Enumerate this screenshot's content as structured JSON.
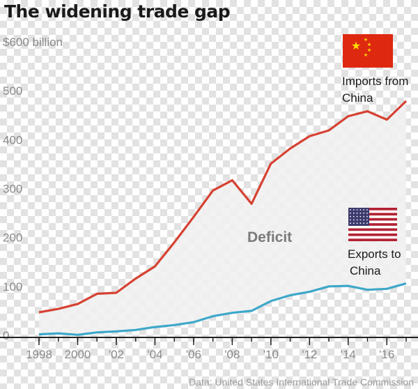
{
  "title": "The widening trade gap",
  "source": "Data: United States International Trade Commission",
  "colors": {
    "imports": "#d64232",
    "exports": "#3ea8c9",
    "area": "#f1f1f1",
    "axis": "#222222"
  },
  "icons": {
    "imports_flag": "china-flag-icon",
    "exports_flag": "us-flag-icon"
  },
  "chart_data": {
    "type": "line",
    "title": "The widening trade gap",
    "xlabel": "",
    "ylabel": "",
    "y_unit": "$600 billion",
    "ylim": [
      0,
      600
    ],
    "xlim": [
      1998,
      2017
    ],
    "y_ticks": [
      "0",
      "100",
      "200",
      "300",
      "400",
      "500",
      "$600 billion"
    ],
    "y_tick_values": [
      0,
      100,
      200,
      300,
      400,
      500,
      600
    ],
    "x_tick_values": [
      1998,
      2000,
      2002,
      2004,
      2006,
      2008,
      2010,
      2012,
      2014,
      2016
    ],
    "x_tick_labels": [
      "1998",
      "2000",
      "'02",
      "'04",
      "'06",
      "'08",
      "'10",
      "'12",
      "'14",
      "'16"
    ],
    "grid": false,
    "annotation": "Deficit",
    "series": [
      {
        "name": "Imports from China",
        "label_lines": [
          "Imports from",
          "China"
        ],
        "x": [
          1998,
          1999,
          2000,
          2001,
          2002,
          2003,
          2004,
          2005,
          2006,
          2007,
          2008,
          2009,
          2010,
          2011,
          2012,
          2013,
          2014,
          2015,
          2016,
          2017
        ],
        "values": [
          47,
          54,
          64,
          85,
          87,
          116,
          141,
          190,
          242,
          296,
          317,
          269,
          351,
          382,
          407,
          419,
          448,
          458,
          441,
          479
        ]
      },
      {
        "name": "Exports to China",
        "label_lines": [
          "Exports to",
          "China"
        ],
        "x": [
          1998,
          1999,
          2000,
          2001,
          2002,
          2003,
          2004,
          2005,
          2006,
          2007,
          2008,
          2009,
          2010,
          2011,
          2012,
          2013,
          2014,
          2015,
          2016,
          2017
        ],
        "values": [
          2,
          4,
          1,
          6,
          8,
          11,
          17,
          21,
          27,
          39,
          46,
          50,
          70,
          82,
          89,
          100,
          101,
          93,
          95,
          106
        ]
      }
    ]
  }
}
